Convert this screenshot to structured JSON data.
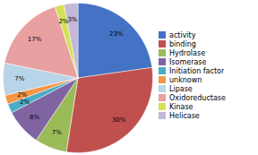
{
  "chart_data": {
    "type": "pie",
    "categories": [
      "activity",
      "binding",
      "Hydrolase",
      "Isomerase",
      "Initiation factor",
      "unknown",
      "Lipase",
      "Oxidoreductase",
      "Kinase",
      "Helicase"
    ],
    "values": [
      23,
      30,
      7,
      8,
      2,
      2,
      7,
      17,
      2,
      3
    ],
    "value_labels": [
      "23%",
      "30%",
      "7%",
      "8%",
      "2%",
      "2%",
      "7%",
      "17%",
      "2%",
      "3%"
    ],
    "colors": [
      "#4472c4",
      "#c0504d",
      "#9bbb59",
      "#8064a2",
      "#4bacc6",
      "#f79646",
      "#b8d4e8",
      "#e8a0a0",
      "#d4e157",
      "#c4b7d7"
    ],
    "data_labels": true,
    "legend": "right"
  }
}
